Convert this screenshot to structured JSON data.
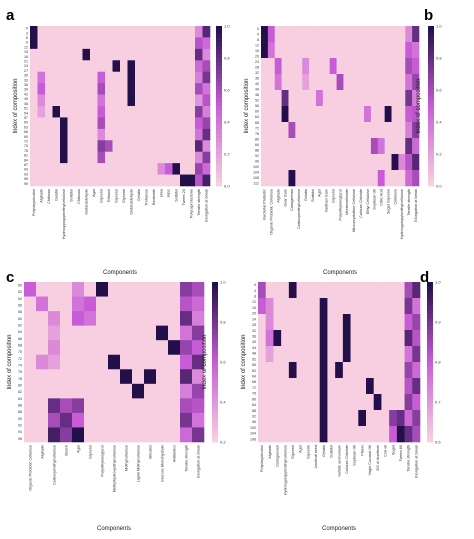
{
  "colors": {
    "low": "#f7cfe0",
    "mid": "#c85cd6",
    "high": "#23104a"
  },
  "chart_data": [
    {
      "type": "heatmap",
      "panel": "a",
      "xlabel": "Components",
      "ylabel": "Index of composition",
      "colorbar_ticks": [
        "0.0",
        "0.2",
        "0.4",
        "0.6",
        "0.8",
        "1.0"
      ],
      "y_ticks": [
        "0",
        "3",
        "6",
        "9",
        "12",
        "15",
        "18",
        "21",
        "24",
        "27",
        "30",
        "33",
        "36",
        "39",
        "42",
        "45",
        "48",
        "51",
        "54",
        "57",
        "60",
        "63",
        "66",
        "69",
        "72",
        "75",
        "78",
        "81",
        "84",
        "87",
        "90",
        "93",
        "96",
        "99"
      ],
      "columns": [
        "Polyvinylalcohol",
        "Alginate",
        "Chitosan",
        "Gelatin",
        "Hydroxypropylmethylcellulose",
        "Sorbitol",
        "Chitosan",
        "Glutaraldehyde",
        "Agar",
        "Glycerol",
        "Ethanol",
        "Glycerol",
        "Glycerin",
        "Glutaraldehyde",
        "Gelatin",
        "Trehalose",
        "Bentonite",
        "Urea",
        "PEG",
        "Sorbitol",
        "Tween 20",
        "Polycaprolactone",
        "Tensile strength",
        "Elongation at break"
      ],
      "values": [
        [
          1,
          0,
          0,
          0,
          0,
          0,
          0,
          0,
          0,
          0,
          0,
          0,
          0,
          0,
          0,
          0,
          0,
          0,
          0,
          0,
          0,
          0,
          0.3,
          0.85
        ],
        [
          1,
          0,
          0,
          0,
          0,
          0,
          0,
          0,
          0,
          0,
          0,
          0,
          0,
          0,
          0,
          0,
          0,
          0,
          0,
          0,
          0,
          0,
          0.55,
          0.45
        ],
        [
          0,
          0,
          0,
          0,
          0,
          0,
          0,
          1,
          0,
          0,
          0,
          0,
          0,
          0,
          0,
          0,
          0,
          0,
          0,
          0,
          0,
          0,
          0.8,
          0.3
        ],
        [
          0,
          0,
          0,
          0,
          0,
          0,
          0,
          0,
          0,
          0,
          0,
          1,
          0,
          1,
          0,
          0,
          0,
          0,
          0,
          0,
          0,
          0,
          0.45,
          0.6
        ],
        [
          0,
          0.4,
          0,
          0,
          0,
          0,
          0,
          0,
          0,
          0.5,
          0,
          0,
          0,
          1,
          0,
          0,
          0,
          0,
          0,
          0,
          0,
          0,
          0.35,
          0.75
        ],
        [
          0,
          0.5,
          0,
          0,
          0,
          0,
          0,
          0,
          0,
          0.6,
          0,
          0,
          0,
          1,
          0,
          0,
          0,
          0,
          0,
          0,
          0,
          0,
          0.6,
          0.4
        ],
        [
          0,
          0.3,
          0,
          0,
          0,
          0,
          0,
          0,
          0,
          0.4,
          0,
          0,
          0,
          1,
          0,
          0,
          0,
          0,
          0,
          0,
          0,
          0,
          0.25,
          0.55
        ],
        [
          0,
          0.2,
          0,
          1,
          0,
          0,
          0,
          0,
          0,
          0.5,
          0,
          0,
          0,
          0,
          0,
          0,
          0,
          0,
          0,
          0,
          0,
          0,
          0.7,
          0.35
        ],
        [
          0,
          0,
          0,
          0,
          1,
          0,
          0,
          0,
          0,
          0.6,
          0,
          0,
          0,
          0,
          0,
          0,
          0,
          0,
          0,
          0,
          0,
          0,
          0.5,
          0.65
        ],
        [
          0,
          0,
          0,
          0,
          1,
          0,
          0,
          0,
          0,
          0.3,
          0,
          0,
          0,
          0,
          0,
          0,
          0,
          0,
          0,
          0,
          0,
          0,
          0.4,
          0.8
        ],
        [
          0,
          0,
          0,
          0,
          1,
          0,
          0,
          0,
          0,
          0.7,
          0.6,
          0,
          0,
          0,
          0,
          0,
          0,
          0,
          0,
          0,
          0,
          0,
          0.85,
          0.3
        ],
        [
          0,
          0,
          0,
          0,
          1,
          0,
          0,
          0,
          0,
          0.6,
          0,
          0,
          0,
          0,
          0,
          0,
          0,
          0,
          0,
          0,
          0,
          0,
          0.3,
          0.7
        ],
        [
          0,
          0,
          0,
          0,
          0,
          0,
          0,
          0,
          0,
          0,
          0,
          0,
          0,
          0,
          0,
          0,
          0,
          0.3,
          0.5,
          1,
          0,
          0,
          0.65,
          0.45
        ],
        [
          0,
          0,
          0,
          0,
          0,
          0,
          0,
          0,
          0,
          0,
          0,
          0,
          0,
          0,
          0,
          0,
          0,
          0,
          0,
          0,
          1,
          1,
          0.55,
          0.9
        ]
      ]
    },
    {
      "type": "heatmap",
      "panel": "b",
      "xlabel": "Components",
      "ylabel": "Index of composition",
      "colorbar_ticks": [
        "0.0",
        "0.2",
        "0.4",
        "0.6",
        "0.8",
        "1.0"
      ],
      "y_ticks": [
        "0",
        "4",
        "8",
        "12",
        "16",
        "20",
        "24",
        "28",
        "32",
        "36",
        "40",
        "44",
        "48",
        "52",
        "56",
        "60",
        "64",
        "68",
        "72",
        "76",
        "80",
        "84",
        "88",
        "92",
        "96",
        "100",
        "104",
        "108",
        "112"
      ],
      "columns": [
        "Bacterial Prebiotic",
        "Organic Prebiotic Cellulose",
        "Alginate",
        "Guar Gum",
        "Carrageenan",
        "Carboxymethylcellulose",
        "Gelatin",
        "Sorbitol",
        "Agar",
        "Xanthan Gum",
        "Glycerol",
        "Polyethyleneglycol",
        "Montmorillonite",
        "Microcrystalline Cellulose",
        "Calcium Chloride",
        "Ethyl Cellulose",
        "Soybean Oil",
        "Citric Acid",
        "Sugar Glycerol",
        "Cellulose",
        "Hydroxypropylmethylcellulose",
        "Tensile strength",
        "Elongation at break"
      ],
      "values": [
        [
          1,
          0.5,
          0,
          0,
          0,
          0,
          0,
          0,
          0,
          0,
          0,
          0,
          0,
          0,
          0,
          0,
          0,
          0,
          0,
          0,
          0,
          0.3,
          0.8
        ],
        [
          1,
          0.4,
          0,
          0,
          0,
          0,
          0,
          0,
          0,
          0,
          0,
          0,
          0,
          0,
          0,
          0,
          0,
          0,
          0,
          0,
          0,
          0.5,
          0.4
        ],
        [
          0,
          0,
          0.5,
          0,
          0,
          0,
          0.3,
          0,
          0,
          0,
          0.5,
          0,
          0,
          0,
          0,
          0,
          0,
          0,
          0,
          0,
          0,
          0.6,
          0.5
        ],
        [
          0,
          0,
          0.4,
          0,
          0,
          0,
          0.2,
          0,
          0,
          0,
          0,
          0.6,
          0,
          0,
          0,
          0,
          0,
          0,
          0,
          0,
          0,
          0.4,
          0.65
        ],
        [
          0,
          0,
          0,
          0.8,
          0,
          0,
          0,
          0,
          0.4,
          0,
          0,
          0,
          0,
          0,
          0,
          0,
          0,
          0,
          0,
          0,
          0,
          0.75,
          0.35
        ],
        [
          0,
          0,
          0,
          1,
          0,
          0,
          0,
          0,
          0,
          0,
          0,
          0,
          0,
          0,
          0,
          0.4,
          0,
          0,
          1,
          0,
          0,
          0.5,
          0.55
        ],
        [
          0,
          0,
          0,
          0,
          0.6,
          0,
          0,
          0,
          0,
          0,
          0,
          0,
          0,
          0,
          0,
          0,
          0,
          0,
          0,
          0,
          0,
          0.35,
          0.7
        ],
        [
          0,
          0,
          0,
          0,
          0,
          0,
          0,
          0,
          0,
          0,
          0,
          0,
          0,
          0,
          0,
          0,
          0.6,
          0.4,
          0,
          0,
          0,
          0.8,
          0.45
        ],
        [
          0,
          0,
          0,
          0,
          0,
          0,
          0,
          0,
          0,
          0,
          0,
          0,
          0,
          0,
          0,
          0,
          0,
          0,
          0,
          1,
          0.3,
          0.55,
          0.85
        ],
        [
          0,
          0,
          0,
          0,
          1,
          0,
          0,
          0,
          0,
          0,
          0,
          0,
          0,
          0,
          0,
          0,
          0,
          0.5,
          0,
          0,
          0,
          0.45,
          0.6
        ]
      ]
    },
    {
      "type": "heatmap",
      "panel": "c",
      "xlabel": "Components",
      "ylabel": "Index of composition",
      "colorbar_ticks": [
        "0.2",
        "0.4",
        "0.6",
        "0.8",
        "1.0"
      ],
      "y_ticks": [
        "50",
        "52",
        "54",
        "56",
        "58",
        "60",
        "62",
        "64",
        "66",
        "68",
        "70",
        "72",
        "74",
        "76",
        "78",
        "80",
        "82",
        "84",
        "86",
        "88",
        "90",
        "92",
        "94",
        "96"
      ],
      "columns": [
        "Organic Prebiotic Cellulose",
        "Alginate",
        "Carboxymethylcellulose",
        "Starch",
        "Agar",
        "Glycerol",
        "Polyethyleneglycol",
        "Methylhydroxyethylcellulose",
        "Methylcellulose",
        "Lignin Methylcellulose",
        "Silicates",
        "Glucose Monohydrate",
        "Antibiotics",
        "Tensile strength",
        "Elongation at break"
      ],
      "values": [
        [
          0.5,
          0,
          0,
          0,
          0.3,
          0,
          1,
          0,
          0,
          0,
          0,
          0,
          0,
          0.7,
          0.6
        ],
        [
          0,
          0.4,
          0,
          0,
          0.4,
          0.5,
          0,
          0,
          0,
          0,
          0,
          0,
          0,
          0.55,
          0.45
        ],
        [
          0,
          0,
          0.3,
          0,
          0.5,
          0.4,
          0,
          0,
          0,
          0,
          0,
          0,
          0,
          0.8,
          0.35
        ],
        [
          0,
          0,
          0.2,
          0,
          0,
          0,
          0,
          0,
          0,
          0,
          0,
          1,
          0,
          0.4,
          0.7
        ],
        [
          0,
          0,
          0.3,
          0,
          0,
          0,
          0,
          0,
          0,
          0,
          0,
          0,
          1,
          0.65,
          0.5
        ],
        [
          0,
          0.3,
          0.2,
          0,
          0,
          0,
          0,
          1,
          0,
          0,
          0,
          0,
          0,
          0.5,
          0.8
        ],
        [
          0,
          0,
          0,
          0,
          0,
          0,
          0,
          0,
          1,
          0,
          1,
          0,
          0,
          0.85,
          0.3
        ],
        [
          0,
          0,
          0,
          0,
          0,
          0,
          0,
          0,
          0,
          1,
          0,
          0,
          0,
          0.35,
          0.65
        ],
        [
          0,
          0,
          0.8,
          0.6,
          0.7,
          0,
          0,
          0,
          0,
          0,
          0,
          0,
          0,
          0.6,
          0.55
        ],
        [
          0,
          0,
          0.6,
          0.8,
          0.5,
          0,
          0,
          0,
          0,
          0,
          0,
          0,
          0,
          0.75,
          0.4
        ],
        [
          0,
          0,
          0.9,
          0.7,
          1,
          0,
          0,
          0,
          0,
          0,
          0,
          0,
          0,
          0.45,
          0.75
        ]
      ]
    },
    {
      "type": "heatmap",
      "panel": "d",
      "xlabel": "Components",
      "ylabel": "Index of composition",
      "colorbar_ticks": [
        "0.6",
        "0.7",
        "0.8",
        "0.9",
        "1.0"
      ],
      "y_ticks": [
        "0",
        "4",
        "8",
        "12",
        "16",
        "20",
        "24",
        "28",
        "32",
        "36",
        "40",
        "44",
        "48",
        "52",
        "56",
        "60",
        "64",
        "68",
        "72",
        "76",
        "80",
        "84",
        "88",
        "92",
        "96",
        "100",
        "104",
        "108"
      ],
      "columns": [
        "Polyvinylalcohol",
        "Alginate",
        "Carrageenan",
        "Hydroxypropylmethylcellulose",
        "Glycerol",
        "Agar",
        "Glycerin",
        "Jackfruit seed",
        "Gelatin",
        "Sorbitol",
        "Sulfate ammonium",
        "Calcium Chloride",
        "Soybean Oil",
        "Fibers",
        "Virgin Coconut Oil",
        "EO of Anethole",
        "Coir oil",
        "Sugar",
        "Tween 80",
        "Tensile strength",
        "Elongation at break"
      ],
      "values": [
        [
          0.6,
          0,
          0,
          0,
          1,
          0,
          0,
          0,
          0,
          0,
          0,
          0,
          0,
          0,
          0,
          0,
          0,
          0,
          0,
          0.6,
          0.85
        ],
        [
          0.5,
          0.3,
          0,
          0,
          0,
          0,
          0,
          0,
          1,
          0,
          0,
          0,
          0,
          0,
          0,
          0,
          0,
          0,
          0,
          0.75,
          0.4
        ],
        [
          0,
          0.3,
          0,
          0,
          0,
          0,
          0,
          0,
          1,
          0,
          0,
          1,
          0,
          0,
          0,
          0,
          0,
          0,
          0,
          0.5,
          0.65
        ],
        [
          0,
          0.4,
          1,
          0,
          0,
          0,
          0,
          0,
          1,
          0,
          0,
          1,
          0,
          0,
          0,
          0,
          0,
          0,
          0,
          0.85,
          0.55
        ],
        [
          0,
          0.2,
          0,
          0,
          0,
          0,
          0,
          0,
          1,
          0,
          0,
          1,
          0,
          0,
          0,
          0,
          0,
          0,
          0,
          0.4,
          0.75
        ],
        [
          0,
          0,
          0,
          0,
          1,
          0,
          0,
          0,
          1,
          0,
          1,
          0,
          0,
          0,
          0,
          0,
          0,
          0,
          0,
          0.65,
          0.45
        ],
        [
          0,
          0,
          0,
          0,
          0,
          0,
          0,
          0,
          1,
          0,
          0,
          0,
          0,
          0,
          1,
          0,
          0,
          0,
          0,
          0.55,
          0.8
        ],
        [
          0,
          0,
          0,
          0,
          0,
          0,
          0,
          0,
          1,
          0,
          0,
          0,
          0,
          0,
          0,
          1,
          0,
          0,
          0,
          0.7,
          0.5
        ],
        [
          0,
          0,
          0,
          0,
          0,
          0,
          0,
          0,
          1,
          0,
          0,
          0,
          0,
          1,
          0,
          0,
          0,
          0.7,
          0.8,
          0.45,
          0.7
        ],
        [
          0,
          0,
          0,
          0,
          0,
          0,
          0,
          0,
          1,
          0,
          0,
          0,
          0,
          0,
          0,
          0,
          0,
          0.5,
          1,
          0.8,
          0.6
        ]
      ]
    }
  ]
}
